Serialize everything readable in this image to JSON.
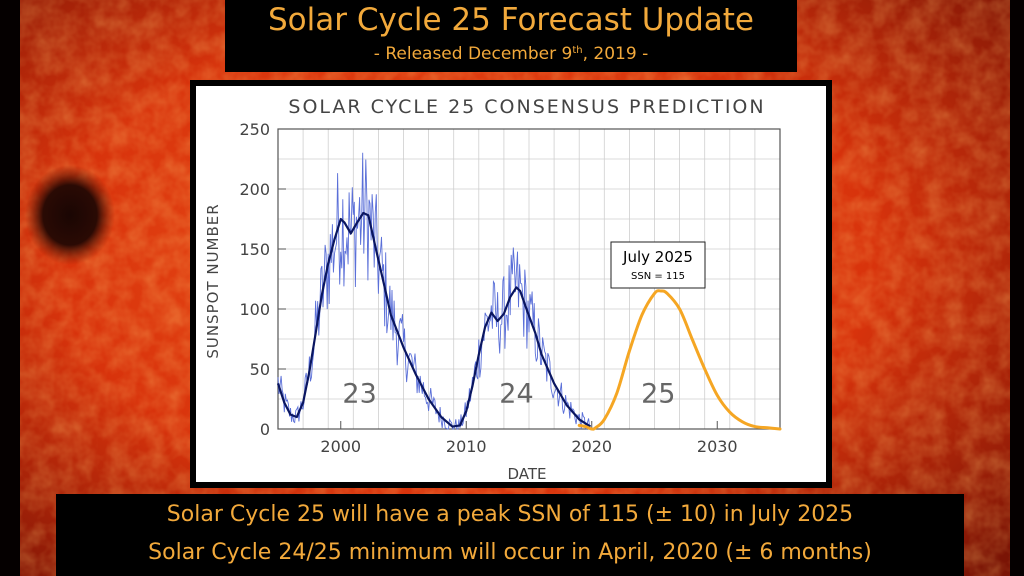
{
  "header": {
    "title": "Solar Cycle 25 Forecast Update",
    "subtitle_prefix": "- Released December 9",
    "subtitle_sup": "th",
    "subtitle_suffix": ", 2019 -"
  },
  "footer": {
    "line1": "Solar Cycle 25 will have a peak SSN of 115 (± 10) in July 2025",
    "line2": "Solar Cycle 24/25 minimum will occur in April, 2020 (± 6 months)"
  },
  "colors": {
    "accent": "#f2a93b",
    "observed_raw": "#5a6fd8",
    "observed_smoothed": "#0a1660",
    "prediction": "#f5a623"
  },
  "chart_data": {
    "type": "line",
    "title": "SOLAR CYCLE 25 CONSENSUS PREDICTION",
    "xlabel": "DATE",
    "ylabel": "SUNSPOT NUMBER",
    "xlim": [
      1995,
      2035
    ],
    "ylim": [
      0,
      250
    ],
    "xticks": [
      2000,
      2010,
      2020,
      2030
    ],
    "yticks": [
      0,
      50,
      100,
      150,
      200,
      250
    ],
    "grid": true,
    "cycle_labels": [
      {
        "text": "23",
        "x": 2001.5,
        "y": 22
      },
      {
        "text": "24",
        "x": 2014.0,
        "y": 22
      },
      {
        "text": "25",
        "x": 2025.3,
        "y": 22
      }
    ],
    "annotation": {
      "title": "July 2025",
      "text": "SSN = 115",
      "x": 2025.5,
      "y": 115
    },
    "series": [
      {
        "kind": "smoothed",
        "x": [
          1995.0,
          1995.5,
          1996.0,
          1996.5,
          1997.0,
          1997.5,
          1998.0,
          1998.5,
          1999.0,
          1999.5,
          2000.0,
          2000.3,
          2000.8,
          2001.3,
          2001.8,
          2002.2,
          2002.8,
          2003.5,
          2004.0,
          2005.0,
          2006.0,
          2007.0,
          2008.0,
          2008.9,
          2009.5,
          2010.0,
          2010.5,
          2011.0,
          2011.5,
          2012.0,
          2012.5,
          2013.0,
          2013.5,
          2014.0,
          2014.3,
          2014.8,
          2015.5,
          2016.0,
          2017.0,
          2018.0,
          2019.0,
          2019.9
        ],
        "values": [
          38,
          22,
          12,
          10,
          22,
          48,
          80,
          112,
          138,
          158,
          175,
          172,
          163,
          172,
          180,
          178,
          150,
          118,
          95,
          68,
          45,
          25,
          10,
          2,
          3,
          15,
          36,
          62,
          85,
          97,
          90,
          96,
          110,
          118,
          115,
          100,
          80,
          62,
          38,
          20,
          8,
          2
        ]
      },
      {
        "kind": "predicted",
        "x": [
          2019.0,
          2019.5,
          2020.0,
          2020.3,
          2021.0,
          2022.0,
          2023.0,
          2024.0,
          2025.0,
          2025.5,
          2026.0,
          2027.0,
          2028.0,
          2029.0,
          2030.0,
          2031.0,
          2032.0,
          2033.0,
          2034.0,
          2035.0
        ],
        "values": [
          3,
          2,
          0,
          1,
          8,
          30,
          65,
          95,
          113,
          115,
          113,
          100,
          75,
          50,
          28,
          14,
          6,
          2,
          1,
          0
        ]
      }
    ]
  }
}
